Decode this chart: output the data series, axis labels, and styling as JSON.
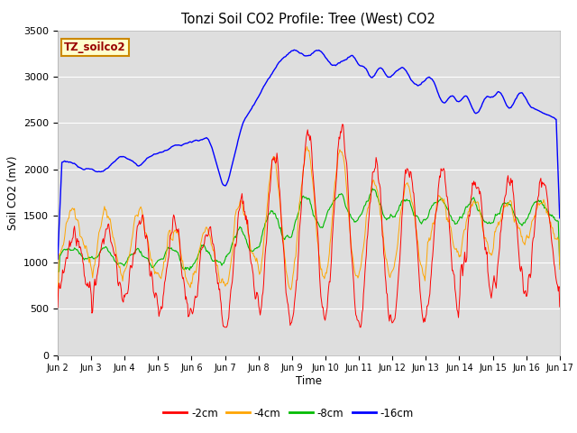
{
  "title": "Tonzi Soil CO2 Profile: Tree (West) CO2",
  "ylabel": "Soil CO2 (mV)",
  "xlabel": "Time",
  "legend_label": "TZ_soilco2",
  "series_labels": [
    "-2cm",
    "-4cm",
    "-8cm",
    "-16cm"
  ],
  "series_colors": [
    "#ff0000",
    "#ffa500",
    "#00bb00",
    "#0000ff"
  ],
  "ylim": [
    0,
    3500
  ],
  "yticks": [
    0,
    500,
    1000,
    1500,
    2000,
    2500,
    3000,
    3500
  ],
  "xtick_labels": [
    "Jun 2",
    "Jun 3",
    "Jun 4",
    "Jun 5",
    "Jun 6",
    "Jun 7",
    "Jun 8",
    "Jun 9",
    "Jun 10",
    "Jun 11",
    "Jun 12",
    "Jun 13",
    "Jun 14",
    "Jun 15",
    "Jun 16",
    "Jun 17"
  ],
  "plot_bg_color": "#dedede",
  "fig_bg_color": "#ffffff",
  "label_box_facecolor": "#ffffcc",
  "label_box_edgecolor": "#cc8800",
  "grid_color": "#ffffff",
  "n_days": 15,
  "pts_per_day": 48,
  "seed": 12345
}
